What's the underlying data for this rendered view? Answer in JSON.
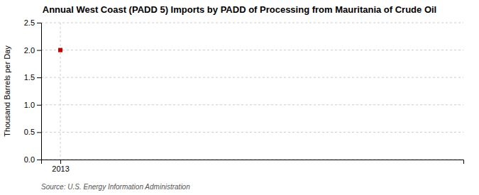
{
  "chart_data": {
    "type": "scatter",
    "title": "Annual West Coast (PADD 5) Imports by PADD of Processing from Mauritania of Crude Oil",
    "ylabel": "Thousand Barrels per Day",
    "annotations": [
      "Source: U.S. Energy Information Administration"
    ],
    "x": [
      2013
    ],
    "values": [
      2.0
    ],
    "color": "#c00000",
    "marker": "square",
    "xlim": [
      2012.5,
      2023.5
    ],
    "xticks": [
      2013
    ],
    "ylim": [
      0.0,
      2.5
    ],
    "yticks": [
      {
        "value": 0,
        "label": "0.0"
      },
      0.5,
      {
        "value": 1,
        "label": "1.0"
      },
      1.5,
      {
        "value": 2,
        "label": "2.0"
      },
      2.5
    ],
    "grid": true
  }
}
